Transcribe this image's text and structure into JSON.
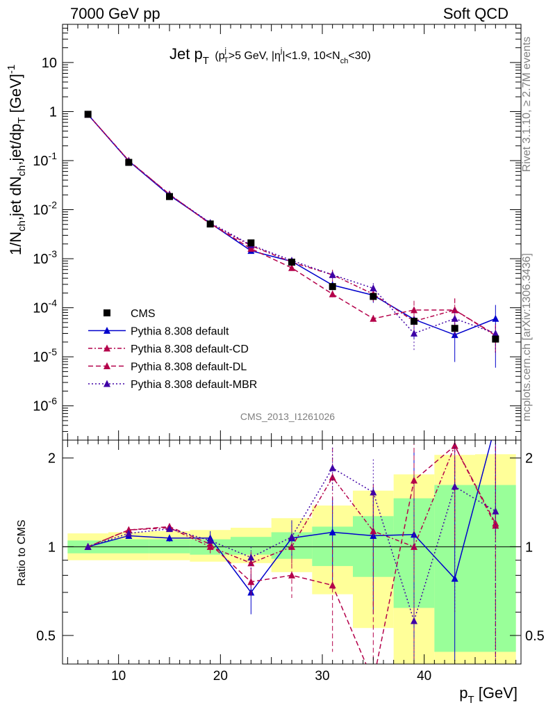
{
  "header": {
    "left": "7000 GeV pp",
    "right": "Soft QCD"
  },
  "side_labels": {
    "rivet": "Rivet 3.1.10, ≥ 2.7M events",
    "mcplots": "mcplots.cern.ch [arXiv:1306.3436]"
  },
  "analysis_id": "CMS_2013_I1261026",
  "chart_data": {
    "type": "line",
    "title": "Jet p_T (p_T^j>5 GeV, |η^j|<1.9, 10<N_ch<30)",
    "xlabel": "p_T [GeV]",
    "ylabel": "1/N_ch,jet dN_ch,jet/dp_T [GeV]^-1",
    "ratio_ylabel": "Ratio to CMS",
    "xlim": [
      4.5,
      49.5
    ],
    "ylim": [
      2e-07,
      60
    ],
    "yscale": "log",
    "ratio_ylim": [
      0.4,
      2.3
    ],
    "x_ticks": [
      10,
      20,
      30,
      40
    ],
    "y_ticks": [
      1e-06,
      1e-05,
      0.0001,
      0.001,
      0.01,
      0.1,
      1,
      10
    ],
    "y_tick_labels": [
      "10^-6",
      "10^-5",
      "10^-4",
      "10^-3",
      "10^-2",
      "10^-1",
      "1",
      "10"
    ],
    "ratio_ticks": [
      0.5,
      1,
      2
    ],
    "ratio_tick_labels": [
      "0.5",
      "1",
      "2"
    ],
    "legend_position": "middle-left",
    "bin_edges": [
      5,
      9,
      13,
      17,
      21,
      25,
      29,
      33,
      37,
      41,
      45,
      49
    ],
    "x": [
      7,
      11,
      15,
      19,
      23,
      27,
      31,
      35,
      39,
      43,
      47
    ],
    "data": {
      "name": "CMS",
      "color": "#000000",
      "y": [
        0.88,
        0.092,
        0.0185,
        0.0051,
        0.0021,
        0.00085,
        0.00027,
        0.00017,
        5.3e-05,
        3.8e-05,
        2.3e-05
      ],
      "band_inner": [
        [
          0.95,
          1.05
        ],
        [
          0.95,
          1.06
        ],
        [
          0.95,
          1.06
        ],
        [
          0.94,
          1.06
        ],
        [
          0.94,
          1.08
        ],
        [
          0.91,
          1.12
        ],
        [
          0.86,
          1.17
        ],
        [
          0.79,
          1.27
        ],
        [
          0.62,
          1.46
        ],
        [
          0.44,
          1.62
        ],
        [
          0.44,
          1.62
        ]
      ],
      "band_outer": [
        [
          0.9,
          1.11
        ],
        [
          0.9,
          1.12
        ],
        [
          0.9,
          1.13
        ],
        [
          0.89,
          1.14
        ],
        [
          0.88,
          1.16
        ],
        [
          0.82,
          1.25
        ],
        [
          0.69,
          1.38
        ],
        [
          0.53,
          1.55
        ],
        [
          0.4,
          1.76
        ],
        [
          0.4,
          2.05
        ],
        [
          0.4,
          2.06
        ]
      ]
    },
    "series": [
      {
        "name": "Pythia 8.308 default",
        "color": "#0000cc",
        "marker": "triangle",
        "dash": "",
        "y": [
          0.87,
          0.098,
          0.0196,
          0.0053,
          0.00145,
          0.00088,
          0.00029,
          0.00018,
          5.8e-05,
          2.8e-05,
          6e-05
        ],
        "ratio": [
          1.0,
          1.09,
          1.07,
          1.07,
          0.7,
          1.07,
          1.12,
          1.09,
          1.1,
          0.78,
          2.6
        ],
        "ratio_err": [
          0.01,
          0.02,
          0.03,
          0.06,
          0.11,
          0.15,
          0.35,
          0.5,
          1.0,
          1.2,
          1.5
        ]
      },
      {
        "name": "Pythia 8.308 default-CD",
        "color": "#b4004a",
        "marker": "triangle",
        "dash": "6,3,2,3",
        "y": [
          0.87,
          0.1,
          0.0205,
          0.0051,
          0.00185,
          0.00085,
          0.00047,
          0.00019,
          5.3e-05,
          9e-05,
          2.7e-05
        ],
        "ratio": [
          1.0,
          1.14,
          1.16,
          1.0,
          0.88,
          1.0,
          1.72,
          1.13,
          1.0,
          2.2,
          1.18
        ],
        "ratio_err": [
          0.01,
          0.02,
          0.03,
          0.05,
          0.08,
          0.14,
          0.45,
          0.5,
          0.8,
          1.2,
          1.0
        ]
      },
      {
        "name": "Pythia 8.308 default-DL",
        "color": "#b4004a",
        "marker": "triangle",
        "dash": "7,4",
        "y": [
          0.87,
          0.1,
          0.0205,
          0.0052,
          0.0016,
          0.00065,
          0.00019,
          6e-05,
          9e-05,
          9e-05,
          2.8e-05
        ],
        "ratio": [
          1.0,
          1.14,
          1.17,
          1.02,
          0.76,
          0.8,
          0.74,
          0.35,
          1.68,
          2.2,
          1.2
        ],
        "ratio_err": [
          0.01,
          0.02,
          0.03,
          0.05,
          0.09,
          0.13,
          0.3,
          0.3,
          0.9,
          1.2,
          1.0
        ]
      },
      {
        "name": "Pythia 8.308 default-MBR",
        "color": "#3f00a6",
        "marker": "triangle",
        "dash": "2,3",
        "y": [
          0.87,
          0.098,
          0.02,
          0.0054,
          0.0019,
          0.00092,
          0.00047,
          0.00025,
          3e-05,
          6e-05,
          3e-05
        ],
        "ratio": [
          1.0,
          1.11,
          1.15,
          1.05,
          0.92,
          1.08,
          1.85,
          1.53,
          0.56,
          1.6,
          1.32
        ],
        "ratio_err": [
          0.01,
          0.02,
          0.03,
          0.05,
          0.08,
          0.15,
          0.32,
          0.45,
          0.9,
          1.0,
          1.0
        ]
      }
    ]
  }
}
